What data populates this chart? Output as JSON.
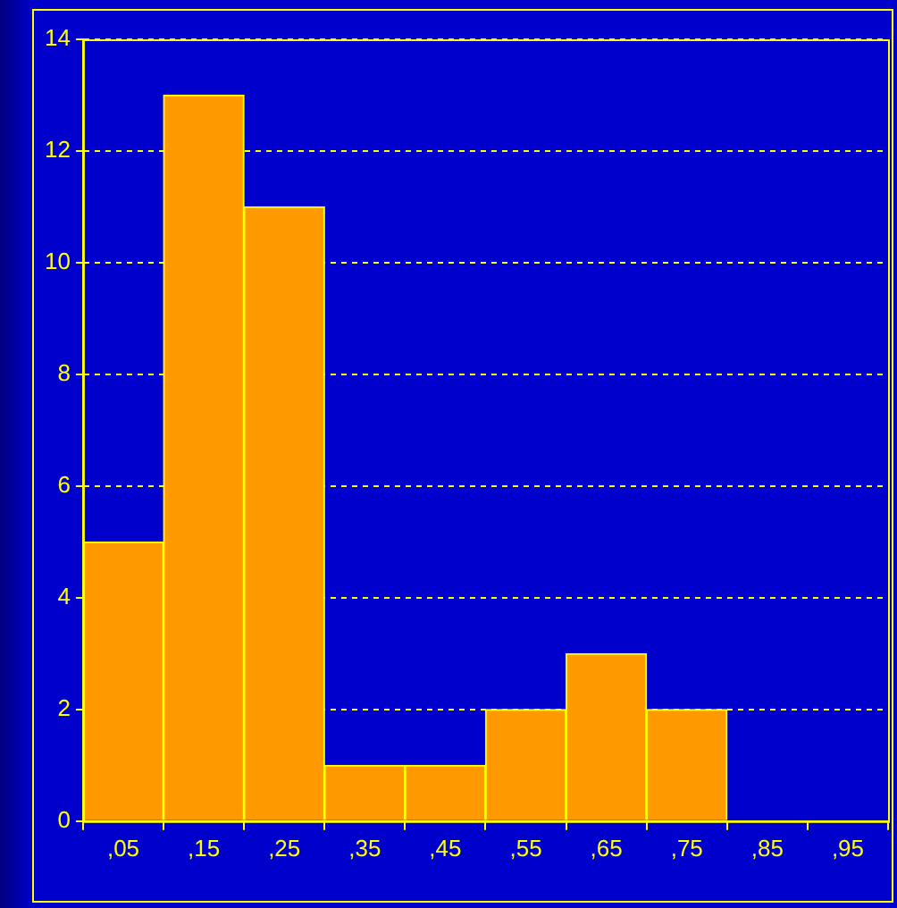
{
  "chart_data": {
    "type": "bar",
    "categories": [
      ",05",
      ",15",
      ",25",
      ",35",
      ",45",
      ",55",
      ",65",
      ",75",
      ",85",
      ",95"
    ],
    "values": [
      5,
      13,
      11,
      1,
      1,
      2,
      3,
      2,
      0,
      0
    ],
    "color": "#ff9900",
    "ylim": [
      0,
      14
    ],
    "yticks": [
      0,
      2,
      4,
      6,
      8,
      10,
      12,
      14
    ],
    "grid": "y"
  }
}
